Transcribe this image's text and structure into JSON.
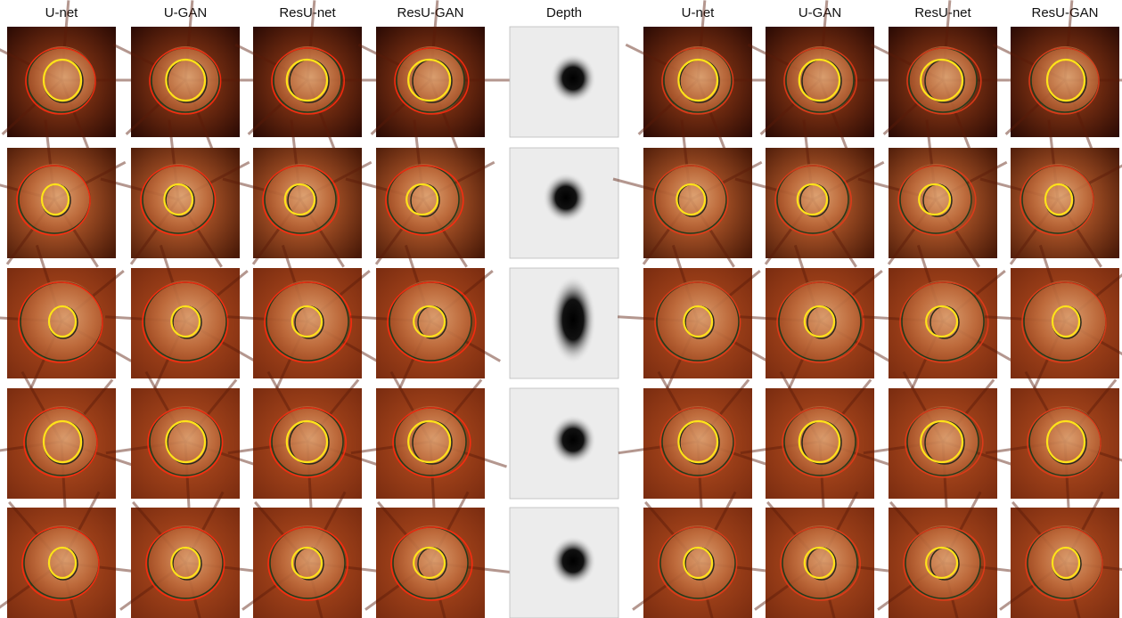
{
  "columns": [
    "U-net",
    "U-GAN",
    "ResU-net",
    "ResU-GAN",
    "Depth",
    "U-net",
    "U-GAN",
    "ResU-net",
    "ResU-GAN"
  ]
}
